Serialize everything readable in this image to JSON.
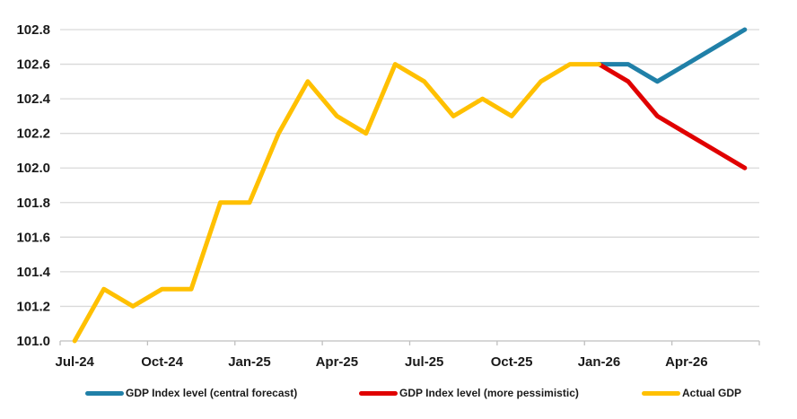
{
  "chart_data": {
    "type": "line",
    "title": "",
    "x_categories": [
      "Jul-24",
      "Aug-24",
      "Sep-24",
      "Oct-24",
      "Nov-24",
      "Dec-24",
      "Jan-25",
      "Feb-25",
      "Mar-25",
      "Apr-25",
      "May-25",
      "Jun-25",
      "Jul-25",
      "Aug-25",
      "Sep-25",
      "Oct-25",
      "Nov-25",
      "Dec-25",
      "Jan-26",
      "Feb-26",
      "Mar-26",
      "Apr-26",
      "May-26",
      "Jun-26"
    ],
    "x_tick_labels": [
      "Jul-24",
      "Oct-24",
      "Jan-25",
      "Apr-25",
      "Jul-25",
      "Oct-25",
      "Jan-26",
      "Apr-26"
    ],
    "x_tick_every": 3,
    "y_tick_labels": [
      "101.0",
      "101.2",
      "101.4",
      "101.6",
      "101.8",
      "102.0",
      "102.2",
      "102.4",
      "102.6",
      "102.8"
    ],
    "ylim": [
      101.0,
      102.8
    ],
    "y_step": 0.2,
    "grid": "horizontal",
    "legend_position": "bottom",
    "colors": {
      "grid": "#d9d9d9",
      "axis": "#bfbfbf",
      "text": "#1a1a1a"
    },
    "series": [
      {
        "name": "GDP Index level (central forecast)",
        "color": "#2080a8",
        "values": [
          null,
          null,
          null,
          null,
          null,
          null,
          null,
          null,
          null,
          null,
          null,
          null,
          null,
          null,
          null,
          null,
          null,
          null,
          102.6,
          102.6,
          102.5,
          102.6,
          102.7,
          102.8
        ]
      },
      {
        "name": "GDP Index level (more pessimistic)",
        "color": "#e00000",
        "values": [
          null,
          null,
          null,
          null,
          null,
          null,
          null,
          null,
          null,
          null,
          null,
          null,
          null,
          null,
          null,
          null,
          null,
          null,
          102.6,
          102.5,
          102.3,
          102.2,
          102.1,
          102.0
        ]
      },
      {
        "name": "Actual GDP",
        "color": "#ffc000",
        "values": [
          101.0,
          101.3,
          101.2,
          101.3,
          101.3,
          101.8,
          101.8,
          102.2,
          102.5,
          102.3,
          102.2,
          102.6,
          102.5,
          102.3,
          102.4,
          102.3,
          102.5,
          102.6,
          102.6,
          null,
          null,
          null,
          null,
          null
        ]
      }
    ]
  }
}
